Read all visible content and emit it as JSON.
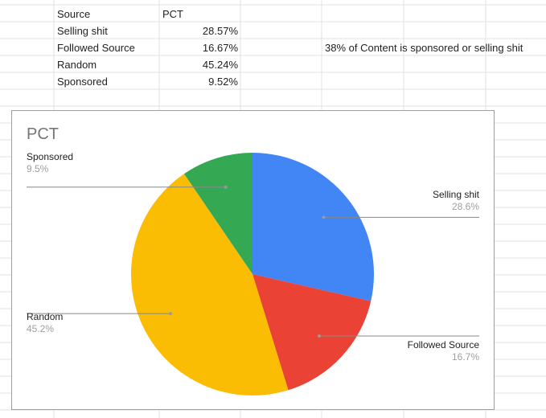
{
  "table": {
    "headers": [
      "Source",
      "PCT"
    ],
    "rows": [
      [
        "Selling shit",
        "28.57%"
      ],
      [
        "Followed Source",
        "16.67%"
      ],
      [
        "Random",
        "45.24%"
      ],
      [
        "Sponsored",
        "9.52%"
      ]
    ],
    "note": "38% of Content is sponsored or selling shit"
  },
  "chart_data": {
    "type": "pie",
    "title": "PCT",
    "categories": [
      "Selling shit",
      "Followed Source",
      "Random",
      "Sponsored"
    ],
    "values": [
      28.57,
      16.67,
      45.24,
      9.52
    ],
    "labels": [
      "28.6%",
      "16.7%",
      "45.2%",
      "9.5%"
    ],
    "colors": [
      "#4285F4",
      "#EA4335",
      "#FBBC04",
      "#34A853"
    ]
  }
}
